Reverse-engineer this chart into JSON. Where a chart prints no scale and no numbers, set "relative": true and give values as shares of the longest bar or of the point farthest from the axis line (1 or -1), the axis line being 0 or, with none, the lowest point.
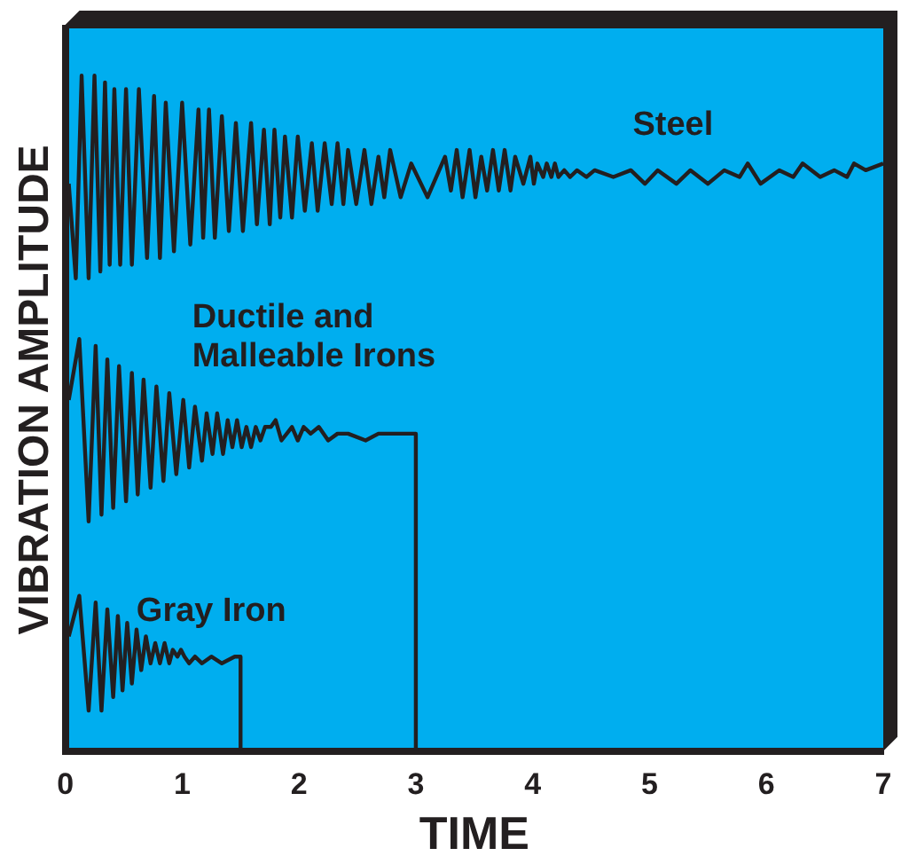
{
  "chart_data": {
    "type": "line",
    "xlabel": "TIME",
    "ylabel": "VIBRATION AMPLITUDE",
    "relative": true,
    "xlim": [
      0,
      7
    ],
    "xticks": [
      0,
      1,
      2,
      3,
      4,
      5,
      6,
      7
    ],
    "tick_labels": "x",
    "grid": false,
    "legend": false,
    "marker": "none",
    "line_style": "solid",
    "series": [
      {
        "name": "Steel",
        "color": "#231f20",
        "x": [
          0.03,
          0.09,
          0.14,
          0.2,
          0.25,
          0.3,
          0.34,
          0.38,
          0.42,
          0.47,
          0.52,
          0.57,
          0.63,
          0.7,
          0.76,
          0.81,
          0.86,
          0.93,
          1.0,
          1.07,
          1.14,
          1.18,
          1.23,
          1.28,
          1.34,
          1.4,
          1.46,
          1.52,
          1.59,
          1.64,
          1.7,
          1.75,
          1.79,
          1.84,
          1.88,
          1.94,
          1.99,
          2.05,
          2.11,
          2.16,
          2.22,
          2.28,
          2.33,
          2.38,
          2.42,
          2.49,
          2.56,
          2.62,
          2.68,
          2.73,
          2.78,
          2.87,
          2.96,
          3.1,
          3.25,
          3.3,
          3.35,
          3.4,
          3.46,
          3.51,
          3.56,
          3.61,
          3.66,
          3.71,
          3.76,
          3.81,
          3.85,
          3.92,
          3.98,
          4.01,
          4.04,
          4.09,
          4.12,
          4.16,
          4.19,
          4.22,
          4.27,
          4.32,
          4.38,
          4.46,
          4.53,
          4.69,
          4.84,
          4.96,
          5.07,
          5.23,
          5.35,
          5.5,
          5.64,
          5.77,
          5.84,
          5.95,
          6.11,
          6.23,
          6.31,
          6.46,
          6.58,
          6.69,
          6.75,
          6.85,
          7.0
        ],
        "values": [
          0.84,
          0.7,
          1.0,
          0.7,
          1.0,
          0.71,
          0.99,
          0.72,
          0.98,
          0.72,
          0.98,
          0.72,
          0.98,
          0.73,
          0.97,
          0.73,
          0.96,
          0.74,
          0.96,
          0.75,
          0.95,
          0.76,
          0.95,
          0.76,
          0.94,
          0.77,
          0.93,
          0.77,
          0.93,
          0.78,
          0.92,
          0.78,
          0.92,
          0.79,
          0.91,
          0.79,
          0.91,
          0.8,
          0.9,
          0.8,
          0.9,
          0.81,
          0.9,
          0.81,
          0.89,
          0.81,
          0.89,
          0.81,
          0.88,
          0.82,
          0.89,
          0.82,
          0.87,
          0.82,
          0.88,
          0.83,
          0.89,
          0.82,
          0.89,
          0.82,
          0.88,
          0.83,
          0.89,
          0.83,
          0.89,
          0.83,
          0.88,
          0.84,
          0.88,
          0.84,
          0.87,
          0.85,
          0.87,
          0.85,
          0.87,
          0.85,
          0.86,
          0.85,
          0.86,
          0.85,
          0.86,
          0.85,
          0.86,
          0.84,
          0.86,
          0.84,
          0.86,
          0.84,
          0.86,
          0.85,
          0.87,
          0.84,
          0.86,
          0.85,
          0.87,
          0.85,
          0.86,
          0.85,
          0.87,
          0.86,
          0.87
        ]
      },
      {
        "name": "Ductile and\nMalleable Irons",
        "color": "#231f20",
        "x": [
          0.03,
          0.12,
          0.2,
          0.26,
          0.31,
          0.36,
          0.41,
          0.46,
          0.52,
          0.57,
          0.62,
          0.67,
          0.73,
          0.78,
          0.84,
          0.89,
          0.95,
          1.01,
          1.06,
          1.11,
          1.17,
          1.21,
          1.26,
          1.3,
          1.35,
          1.39,
          1.43,
          1.47,
          1.51,
          1.55,
          1.59,
          1.63,
          1.67,
          1.71,
          1.76,
          1.8,
          1.85,
          1.94,
          1.99,
          2.04,
          2.1,
          2.17,
          2.25,
          2.33,
          2.42,
          2.57,
          2.68,
          2.79,
          2.87,
          2.95,
          3.0,
          3.0
        ],
        "values": [
          0.52,
          0.61,
          0.34,
          0.6,
          0.35,
          0.58,
          0.36,
          0.57,
          0.37,
          0.56,
          0.38,
          0.55,
          0.39,
          0.54,
          0.4,
          0.53,
          0.41,
          0.52,
          0.42,
          0.51,
          0.43,
          0.5,
          0.44,
          0.5,
          0.44,
          0.49,
          0.45,
          0.49,
          0.45,
          0.48,
          0.45,
          0.48,
          0.46,
          0.48,
          0.48,
          0.49,
          0.46,
          0.48,
          0.46,
          0.48,
          0.47,
          0.48,
          0.46,
          0.47,
          0.47,
          0.46,
          0.47,
          0.47,
          0.47,
          0.47,
          0.47,
          0
        ]
      },
      {
        "name": "Gray Iron",
        "color": "#231f20",
        "x": [
          0.03,
          0.12,
          0.2,
          0.26,
          0.31,
          0.36,
          0.41,
          0.45,
          0.49,
          0.53,
          0.57,
          0.61,
          0.65,
          0.69,
          0.73,
          0.77,
          0.81,
          0.85,
          0.89,
          0.92,
          0.96,
          0.99,
          1.02,
          1.06,
          1.11,
          1.17,
          1.25,
          1.34,
          1.45,
          1.5,
          1.5
        ],
        "values": [
          0.17,
          0.23,
          0.06,
          0.22,
          0.06,
          0.21,
          0.08,
          0.2,
          0.09,
          0.19,
          0.1,
          0.18,
          0.12,
          0.17,
          0.13,
          0.16,
          0.13,
          0.16,
          0.13,
          0.15,
          0.14,
          0.15,
          0.14,
          0.13,
          0.14,
          0.13,
          0.14,
          0.13,
          0.14,
          0.14,
          0
        ]
      }
    ]
  }
}
